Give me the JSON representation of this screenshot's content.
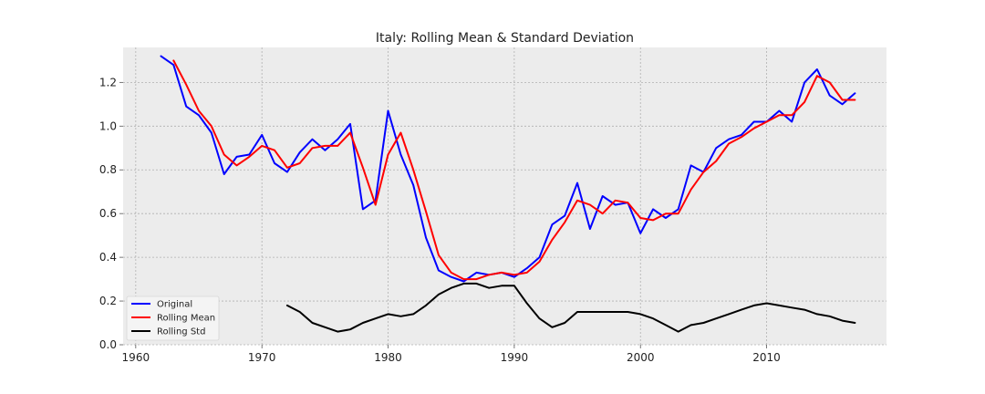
{
  "chart_data": {
    "type": "line",
    "title": "Italy: Rolling Mean & Standard Deviation",
    "xlabel": "",
    "ylabel": "",
    "xlim": [
      1959,
      2019.5
    ],
    "ylim": [
      0,
      1.36
    ],
    "xticks": [
      1960,
      1970,
      1980,
      1990,
      2000,
      2010
    ],
    "yticks": [
      0.0,
      0.2,
      0.4,
      0.6,
      0.8,
      1.0,
      1.2
    ],
    "grid": true,
    "legend_position": "lower-left",
    "series": [
      {
        "name": "Original",
        "color": "#0000ff",
        "x": [
          1962,
          1963,
          1964,
          1965,
          1966,
          1967,
          1968,
          1969,
          1970,
          1971,
          1972,
          1973,
          1974,
          1975,
          1976,
          1977,
          1978,
          1979,
          1980,
          1981,
          1982,
          1983,
          1984,
          1985,
          1986,
          1987,
          1988,
          1989,
          1990,
          1991,
          1992,
          1993,
          1994,
          1995,
          1996,
          1997,
          1998,
          1999,
          2000,
          2001,
          2002,
          2003,
          2004,
          2005,
          2006,
          2007,
          2008,
          2009,
          2010,
          2011,
          2012,
          2013,
          2014,
          2015,
          2016,
          2017
        ],
        "y": [
          1.32,
          1.28,
          1.09,
          1.05,
          0.97,
          0.78,
          0.86,
          0.87,
          0.96,
          0.83,
          0.79,
          0.88,
          0.94,
          0.89,
          0.94,
          1.01,
          0.62,
          0.66,
          1.07,
          0.87,
          0.73,
          0.49,
          0.34,
          0.31,
          0.29,
          0.33,
          0.32,
          0.33,
          0.31,
          0.35,
          0.4,
          0.55,
          0.59,
          0.74,
          0.53,
          0.68,
          0.64,
          0.65,
          0.51,
          0.62,
          0.58,
          0.62,
          0.82,
          0.79,
          0.9,
          0.94,
          0.96,
          1.02,
          1.02,
          1.07,
          1.02,
          1.2,
          1.26,
          1.14,
          1.1,
          1.15
        ]
      },
      {
        "name": "Rolling Mean",
        "color": "#ff0000",
        "x": [
          1963,
          1964,
          1965,
          1966,
          1967,
          1968,
          1969,
          1970,
          1971,
          1972,
          1973,
          1974,
          1975,
          1976,
          1977,
          1978,
          1979,
          1980,
          1981,
          1982,
          1983,
          1984,
          1985,
          1986,
          1987,
          1988,
          1989,
          1990,
          1991,
          1992,
          1993,
          1994,
          1995,
          1996,
          1997,
          1998,
          1999,
          2000,
          2001,
          2002,
          2003,
          2004,
          2005,
          2006,
          2007,
          2008,
          2009,
          2010,
          2011,
          2012,
          2013,
          2014,
          2015,
          2016,
          2017
        ],
        "y": [
          1.3,
          1.19,
          1.07,
          1.0,
          0.87,
          0.82,
          0.86,
          0.91,
          0.89,
          0.81,
          0.83,
          0.9,
          0.91,
          0.91,
          0.97,
          0.81,
          0.64,
          0.87,
          0.97,
          0.8,
          0.61,
          0.41,
          0.33,
          0.3,
          0.3,
          0.32,
          0.33,
          0.32,
          0.33,
          0.38,
          0.48,
          0.56,
          0.66,
          0.64,
          0.6,
          0.66,
          0.65,
          0.58,
          0.57,
          0.6,
          0.6,
          0.71,
          0.79,
          0.84,
          0.92,
          0.95,
          0.99,
          1.02,
          1.05,
          1.05,
          1.11,
          1.23,
          1.2,
          1.12,
          1.12
        ]
      },
      {
        "name": "Rolling Std",
        "color": "#000000",
        "x": [
          1972,
          1973,
          1974,
          1975,
          1976,
          1977,
          1978,
          1979,
          1980,
          1981,
          1982,
          1983,
          1984,
          1985,
          1986,
          1987,
          1988,
          1989,
          1990,
          1991,
          1992,
          1993,
          1994,
          1995,
          1996,
          1997,
          1998,
          1999,
          2000,
          2001,
          2002,
          2003,
          2004,
          2005,
          2006,
          2007,
          2008,
          2009,
          2010,
          2011,
          2012,
          2013,
          2014,
          2015,
          2016,
          2017
        ],
        "y": [
          0.18,
          0.15,
          0.1,
          0.08,
          0.06,
          0.07,
          0.1,
          0.12,
          0.14,
          0.13,
          0.14,
          0.18,
          0.23,
          0.26,
          0.28,
          0.28,
          0.26,
          0.27,
          0.27,
          0.19,
          0.12,
          0.08,
          0.1,
          0.15,
          0.15,
          0.15,
          0.15,
          0.15,
          0.14,
          0.12,
          0.09,
          0.06,
          0.09,
          0.1,
          0.12,
          0.14,
          0.16,
          0.18,
          0.19,
          0.18,
          0.17,
          0.16,
          0.14,
          0.13,
          0.11,
          0.1
        ]
      }
    ]
  }
}
